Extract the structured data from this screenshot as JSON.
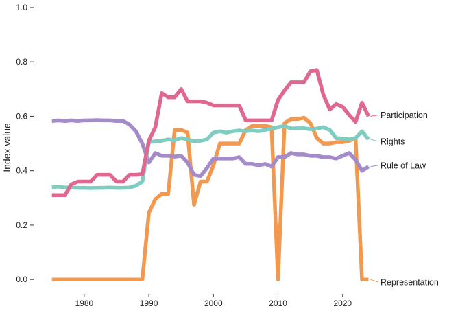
{
  "chart_data": {
    "type": "line",
    "title": "",
    "xlabel": "",
    "ylabel": "Index value",
    "xlim": [
      1974.5,
      2024.8
    ],
    "ylim": [
      -0.05,
      1.02
    ],
    "grid": false,
    "legend": "direct labels at line ends (right)",
    "x_ticks": [
      1980,
      1990,
      2000,
      2010,
      2020
    ],
    "x_tick_labels": [
      "1980",
      "1990",
      "2000",
      "2010",
      "2020"
    ],
    "y_ticks": [
      0,
      0.2,
      0.4,
      0.6,
      0.8,
      1.0
    ],
    "y_tick_labels": [
      "0.0",
      "0.2",
      "0.4",
      "0.6",
      "0.8",
      "1.0"
    ],
    "x": [
      1975,
      1976,
      1977,
      1978,
      1979,
      1980,
      1981,
      1982,
      1983,
      1984,
      1985,
      1986,
      1987,
      1988,
      1989,
      1990,
      1991,
      1992,
      1993,
      1994,
      1995,
      1996,
      1997,
      1998,
      1999,
      2000,
      2001,
      2002,
      2003,
      2004,
      2005,
      2006,
      2007,
      2008,
      2009,
      2010,
      2011,
      2012,
      2013,
      2014,
      2015,
      2016,
      2017,
      2018,
      2019,
      2020,
      2021,
      2022,
      2023,
      2024
    ],
    "series": [
      {
        "name": "Participation",
        "color": "#e0678f",
        "values": [
          0.31,
          0.31,
          0.31,
          0.35,
          0.36,
          0.36,
          0.36,
          0.385,
          0.385,
          0.385,
          0.36,
          0.36,
          0.385,
          0.385,
          0.387,
          0.51,
          0.56,
          0.685,
          0.67,
          0.67,
          0.7,
          0.655,
          0.655,
          0.655,
          0.65,
          0.64,
          0.64,
          0.64,
          0.64,
          0.64,
          0.585,
          0.585,
          0.585,
          0.585,
          0.585,
          0.66,
          0.695,
          0.725,
          0.725,
          0.725,
          0.765,
          0.77,
          0.68,
          0.625,
          0.645,
          0.635,
          0.605,
          0.58,
          0.65,
          0.6
        ]
      },
      {
        "name": "Rights",
        "color": "#7fccc0",
        "values": [
          0.34,
          0.342,
          0.338,
          0.338,
          0.337,
          0.337,
          0.336,
          0.337,
          0.337,
          0.338,
          0.337,
          0.337,
          0.338,
          0.345,
          0.36,
          0.505,
          0.508,
          0.51,
          0.515,
          0.512,
          0.52,
          0.515,
          0.508,
          0.51,
          0.515,
          0.54,
          0.545,
          0.54,
          0.545,
          0.548,
          0.545,
          0.548,
          0.545,
          0.55,
          0.555,
          0.56,
          0.565,
          0.555,
          0.556,
          0.556,
          0.553,
          0.555,
          0.56,
          0.55,
          0.52,
          0.518,
          0.515,
          0.52,
          0.545,
          0.515
        ]
      },
      {
        "name": "Rule of Law",
        "color": "#a48bca",
        "values": [
          0.583,
          0.585,
          0.583,
          0.585,
          0.583,
          0.585,
          0.585,
          0.586,
          0.585,
          0.585,
          0.583,
          0.583,
          0.57,
          0.545,
          0.5,
          0.43,
          0.465,
          0.455,
          0.455,
          0.452,
          0.455,
          0.43,
          0.385,
          0.38,
          0.41,
          0.445,
          0.445,
          0.445,
          0.445,
          0.45,
          0.425,
          0.425,
          0.42,
          0.425,
          0.415,
          0.45,
          0.45,
          0.465,
          0.46,
          0.46,
          0.455,
          0.455,
          0.45,
          0.45,
          0.445,
          0.455,
          0.465,
          0.44,
          0.4,
          0.415
        ]
      },
      {
        "name": "Representation",
        "color": "#f3994f",
        "values": [
          0,
          0,
          0,
          0,
          0,
          0,
          0,
          0,
          0,
          0,
          0,
          0,
          0,
          0,
          0,
          0.245,
          0.295,
          0.315,
          0.315,
          0.55,
          0.55,
          0.54,
          0.275,
          0.36,
          0.36,
          0.42,
          0.5,
          0.5,
          0.5,
          0.5,
          0.55,
          0.565,
          0.565,
          0.565,
          0.56,
          0.0,
          0.575,
          0.59,
          0.59,
          0.595,
          0.575,
          0.52,
          0.5,
          0.5,
          0.505,
          0.505,
          0.51,
          0.52,
          0.0,
          0.0
        ]
      }
    ],
    "end_labels": [
      {
        "series": "Participation",
        "text": "Participation",
        "label_y": 0.605
      },
      {
        "series": "Rights",
        "text": "Rights",
        "label_y": 0.508
      },
      {
        "series": "Rule of Law",
        "text": "Rule of Law",
        "label_y": 0.42
      },
      {
        "series": "Representation",
        "text": "Representation",
        "label_y": -0.01
      }
    ]
  }
}
